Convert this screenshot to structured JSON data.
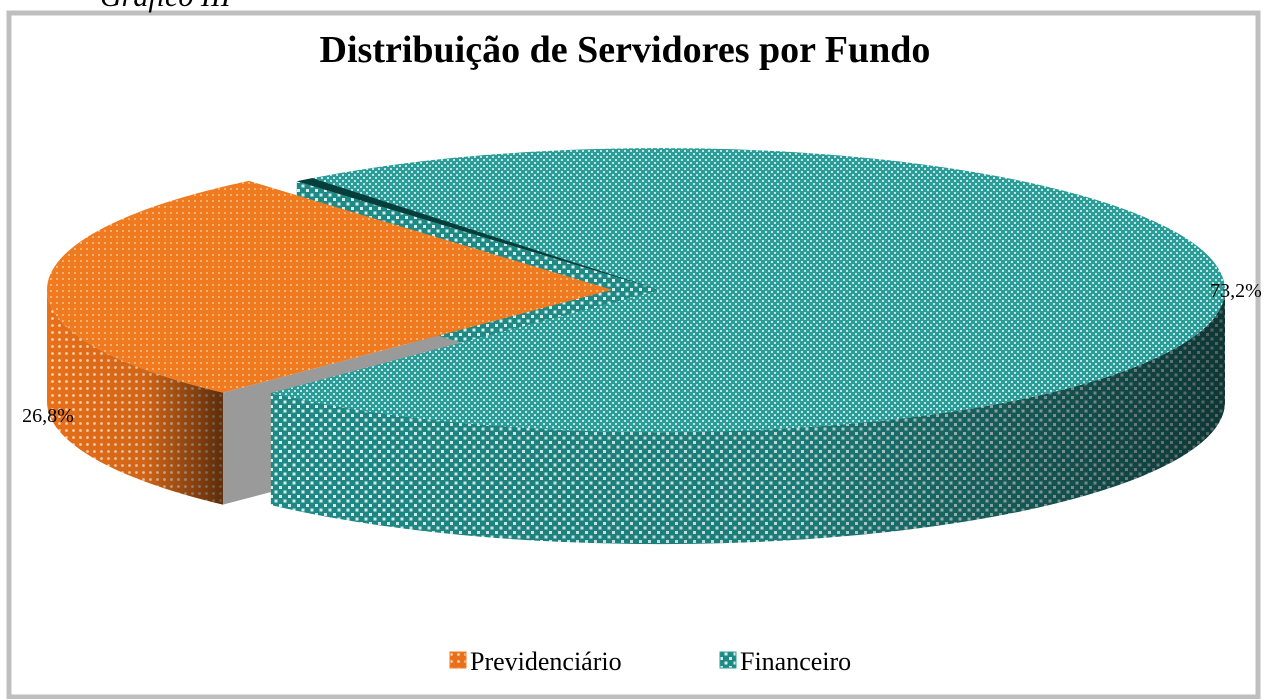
{
  "caption": "Gráfico III",
  "chart_data": {
    "type": "pie",
    "title": "Distribuição de Servidores por Fundo",
    "categories": [
      "Previdenciário",
      "Financeiro"
    ],
    "values": [
      26.8,
      73.2
    ],
    "value_labels": [
      "26,8%",
      "73,2%"
    ],
    "colors": [
      "#f07a20",
      "#2b9c98"
    ],
    "legend": "bottom"
  }
}
